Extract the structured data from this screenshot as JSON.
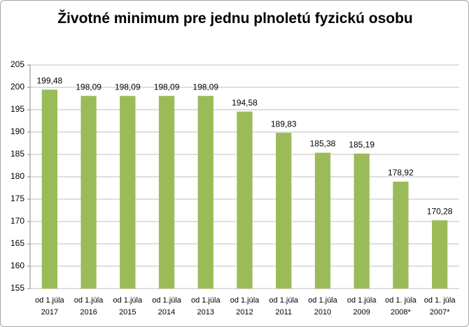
{
  "chart_data": {
    "type": "bar",
    "title": "Životné minimum pre jednu plnoletú fyzickú osobu",
    "categories": [
      "od 1.júla\n2017",
      "od 1.júla\n2016",
      "od 1.júla\n2015",
      "od 1.júla\n2014",
      "od 1.júla\n2013",
      "od 1.júla\n2012",
      "od 1.júla\n2011",
      "od 1.júla\n2010",
      "od 1.júla\n2009",
      "od 1. júla\n2008*",
      "od 1. júla\n2007*"
    ],
    "values": [
      199.48,
      198.09,
      198.09,
      198.09,
      198.09,
      194.58,
      189.83,
      185.38,
      185.19,
      178.92,
      170.28
    ],
    "value_labels": [
      "199,48",
      "198,09",
      "198,09",
      "198,09",
      "198,09",
      "194,58",
      "189,83",
      "185,38",
      "185,19",
      "178,92",
      "170,28"
    ],
    "color": "#9bbb59",
    "ylim": [
      155,
      205
    ],
    "yticks": [
      155,
      160,
      165,
      170,
      175,
      180,
      185,
      190,
      195,
      200,
      205
    ],
    "grid": true
  }
}
